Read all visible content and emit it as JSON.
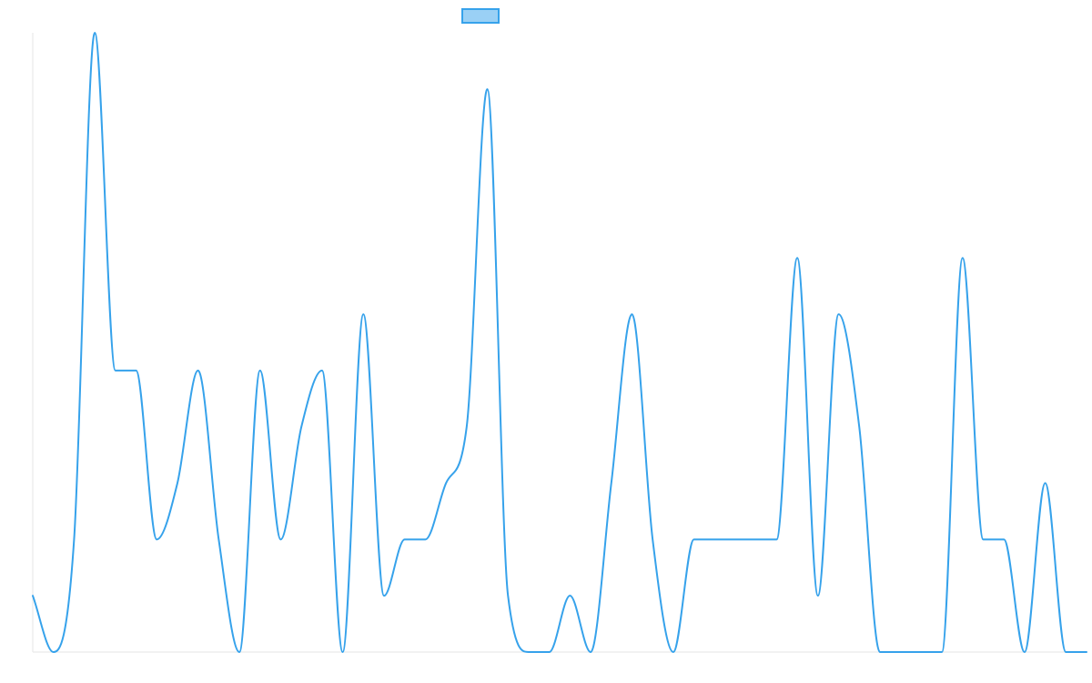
{
  "chart_data": {
    "type": "line",
    "title": "",
    "xlabel": "",
    "ylabel": "",
    "grid": false,
    "legend": "top-center",
    "ylim": [
      0,
      11
    ],
    "series": [
      {
        "name": "",
        "color": "#36a2eb",
        "fill": "#9ad0f5",
        "values": [
          1,
          0,
          2,
          11,
          5,
          5,
          2,
          3,
          5,
          2,
          0,
          5,
          2,
          4,
          5,
          0,
          6,
          1,
          2,
          2,
          3,
          4,
          10,
          1,
          0,
          0,
          1,
          0,
          3,
          6,
          2,
          0,
          2,
          2,
          2,
          2,
          2,
          7,
          1,
          6,
          4,
          0,
          0,
          0,
          0,
          7,
          2,
          2,
          0,
          3,
          0,
          0
        ]
      }
    ]
  }
}
